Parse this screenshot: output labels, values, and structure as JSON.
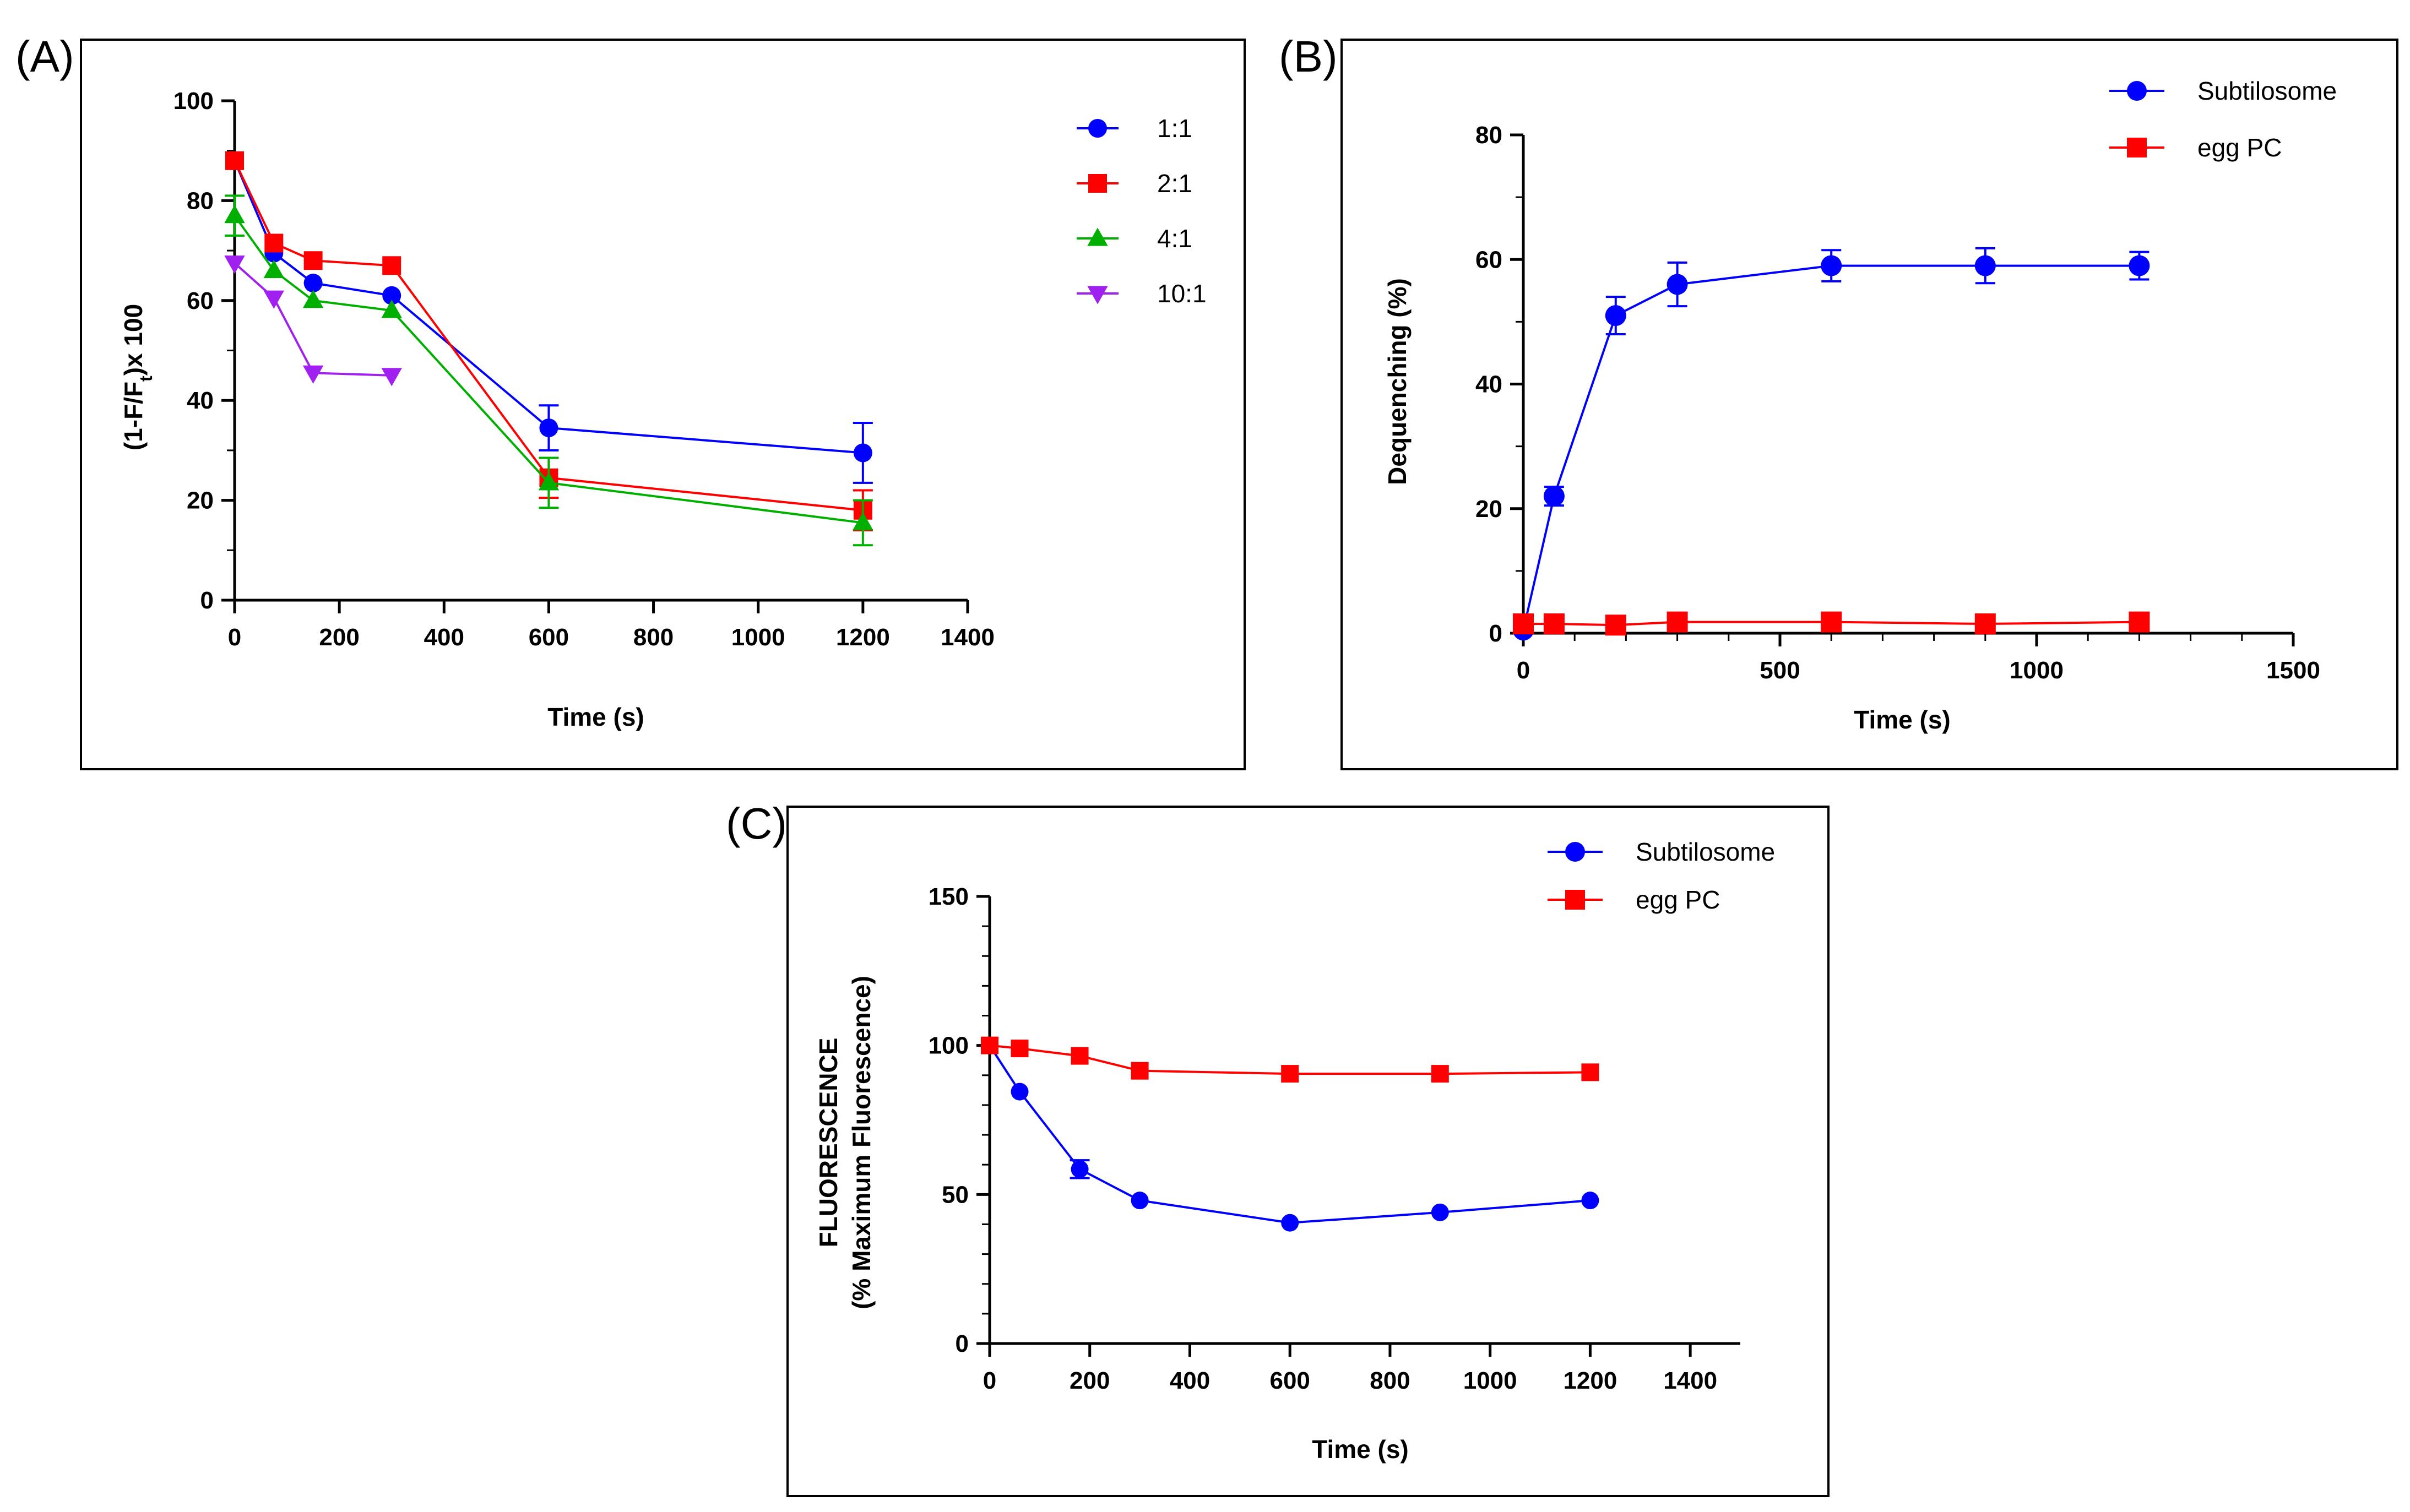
{
  "chart_data": [
    {
      "panel": "(A)",
      "type": "line",
      "title": "",
      "xlabel": "Time (s)",
      "ylabel_main": "(1-F/F",
      "ylabel_sub": "t",
      "ylabel_tail": ")x 100",
      "xlim": [
        0,
        1400
      ],
      "ylim": [
        0,
        100
      ],
      "xticks": [
        0,
        200,
        400,
        600,
        800,
        1000,
        1200,
        1400
      ],
      "yticks": [
        0,
        20,
        40,
        60,
        80,
        100
      ],
      "legend_position": "top-right",
      "series": [
        {
          "name": "1:1",
          "color": "#0000ff",
          "marker": "circle",
          "x": [
            0,
            75,
            150,
            300,
            600,
            1200
          ],
          "y": [
            88,
            69.5,
            63.5,
            61,
            34.5,
            29.5
          ],
          "err": [
            0,
            0,
            0,
            0,
            4.5,
            6
          ]
        },
        {
          "name": "2:1",
          "color": "#ff0000",
          "marker": "square",
          "x": [
            0,
            75,
            150,
            300,
            600,
            1200
          ],
          "y": [
            88,
            71.5,
            68,
            67,
            24.5,
            18
          ],
          "err": [
            0,
            0,
            0,
            0,
            4,
            4
          ]
        },
        {
          "name": "4:1",
          "color": "#00b000",
          "marker": "triangle-up",
          "x": [
            0,
            75,
            150,
            300,
            600,
            1200
          ],
          "y": [
            77,
            66,
            60,
            58,
            23.5,
            15.5
          ],
          "err": [
            4,
            0,
            0,
            0,
            5,
            4.5
          ]
        },
        {
          "name": "10:1",
          "color": "#a020f0",
          "marker": "triangle-down",
          "x": [
            0,
            75,
            150,
            300
          ],
          "y": [
            67.5,
            60.5,
            45.5,
            45
          ],
          "err": [
            0,
            0,
            0,
            0
          ]
        }
      ]
    },
    {
      "panel": "(B)",
      "type": "line",
      "title": "",
      "xlabel": "Time (s)",
      "ylabel": "Dequenching (%)",
      "xlim": [
        0,
        1500
      ],
      "ylim": [
        0,
        80
      ],
      "xticks": [
        0,
        500,
        1000,
        1500
      ],
      "yticks": [
        0,
        20,
        40,
        60,
        80
      ],
      "legend_position": "top-right",
      "series": [
        {
          "name": "Subtilosome",
          "color": "#0000ff",
          "marker": "circle",
          "x": [
            0,
            60,
            180,
            300,
            600,
            900,
            1200
          ],
          "y": [
            0.5,
            22,
            51,
            56,
            59,
            59,
            59
          ],
          "err": [
            0,
            1.5,
            3,
            3.5,
            2.5,
            2.8,
            2.2
          ]
        },
        {
          "name": "egg PC",
          "color": "#ff0000",
          "marker": "square",
          "x": [
            0,
            60,
            180,
            300,
            600,
            900,
            1200
          ],
          "y": [
            1.5,
            1.5,
            1.3,
            1.8,
            1.8,
            1.5,
            1.8
          ],
          "err": [
            0,
            0,
            0,
            0,
            0,
            0,
            0
          ]
        }
      ]
    },
    {
      "panel": "(C)",
      "type": "line",
      "title": "",
      "xlabel": "Time (s)",
      "ylabel_line1": "FLUORESCENCE",
      "ylabel_line2": "(% Maximum Fluorescence)",
      "xlim": [
        0,
        1500
      ],
      "ylim": [
        0,
        150
      ],
      "xticks": [
        0,
        200,
        400,
        600,
        800,
        1000,
        1200,
        1400
      ],
      "yticks": [
        0,
        50,
        100,
        150
      ],
      "legend_position": "top-right",
      "series": [
        {
          "name": "Subtilosome",
          "color": "#0000ff",
          "marker": "circle",
          "x": [
            0,
            60,
            180,
            300,
            600,
            900,
            1200
          ],
          "y": [
            100,
            84.5,
            58.5,
            48,
            40.5,
            44,
            48
          ],
          "err": [
            0,
            0,
            3,
            0,
            0,
            0,
            0
          ]
        },
        {
          "name": "egg PC",
          "color": "#ff0000",
          "marker": "square",
          "x": [
            0,
            60,
            180,
            300,
            600,
            900,
            1200
          ],
          "y": [
            100,
            99,
            96.5,
            91.5,
            90.5,
            90.5,
            91
          ],
          "err": [
            0,
            0,
            0,
            0,
            0,
            0,
            0
          ]
        }
      ]
    }
  ]
}
